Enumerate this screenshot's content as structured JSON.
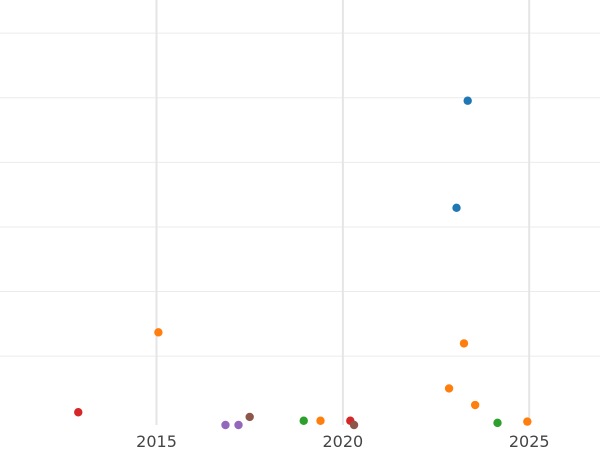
{
  "chart_data": {
    "type": "scatter",
    "title": "",
    "xlabel": "",
    "ylabel": "",
    "xlim": [
      2010.8,
      2026.9
    ],
    "ylim": [
      0,
      100
    ],
    "x_ticks": [
      2015,
      2020,
      2025
    ],
    "x_tick_labels": [
      "2015",
      "2020",
      "2025"
    ],
    "y_gridlines": [
      16.2,
      31.4,
      46.6,
      61.8,
      77.0,
      92.2
    ],
    "grid": true,
    "legend": "none",
    "points": [
      {
        "x": 2012.9,
        "y": 3.0,
        "color": "#d62728"
      },
      {
        "x": 2015.05,
        "y": 21.8,
        "color": "#ff7f0e"
      },
      {
        "x": 2016.85,
        "y": 0.0,
        "color": "#9467bd"
      },
      {
        "x": 2017.2,
        "y": 0.0,
        "color": "#9467bd"
      },
      {
        "x": 2017.5,
        "y": 1.9,
        "color": "#8c564b"
      },
      {
        "x": 2018.95,
        "y": 1.0,
        "color": "#2ca02c"
      },
      {
        "x": 2019.4,
        "y": 1.0,
        "color": "#ff7f0e"
      },
      {
        "x": 2020.2,
        "y": 1.0,
        "color": "#d62728"
      },
      {
        "x": 2020.3,
        "y": 0.0,
        "color": "#8c564b"
      },
      {
        "x": 2022.85,
        "y": 8.6,
        "color": "#ff7f0e"
      },
      {
        "x": 2023.05,
        "y": 51.1,
        "color": "#1f77b4"
      },
      {
        "x": 2023.25,
        "y": 19.2,
        "color": "#ff7f0e"
      },
      {
        "x": 2023.35,
        "y": 76.3,
        "color": "#1f77b4"
      },
      {
        "x": 2023.55,
        "y": 4.7,
        "color": "#ff7f0e"
      },
      {
        "x": 2024.15,
        "y": 0.5,
        "color": "#2ca02c"
      },
      {
        "x": 2024.95,
        "y": 0.8,
        "color": "#ff7f0e"
      }
    ]
  }
}
